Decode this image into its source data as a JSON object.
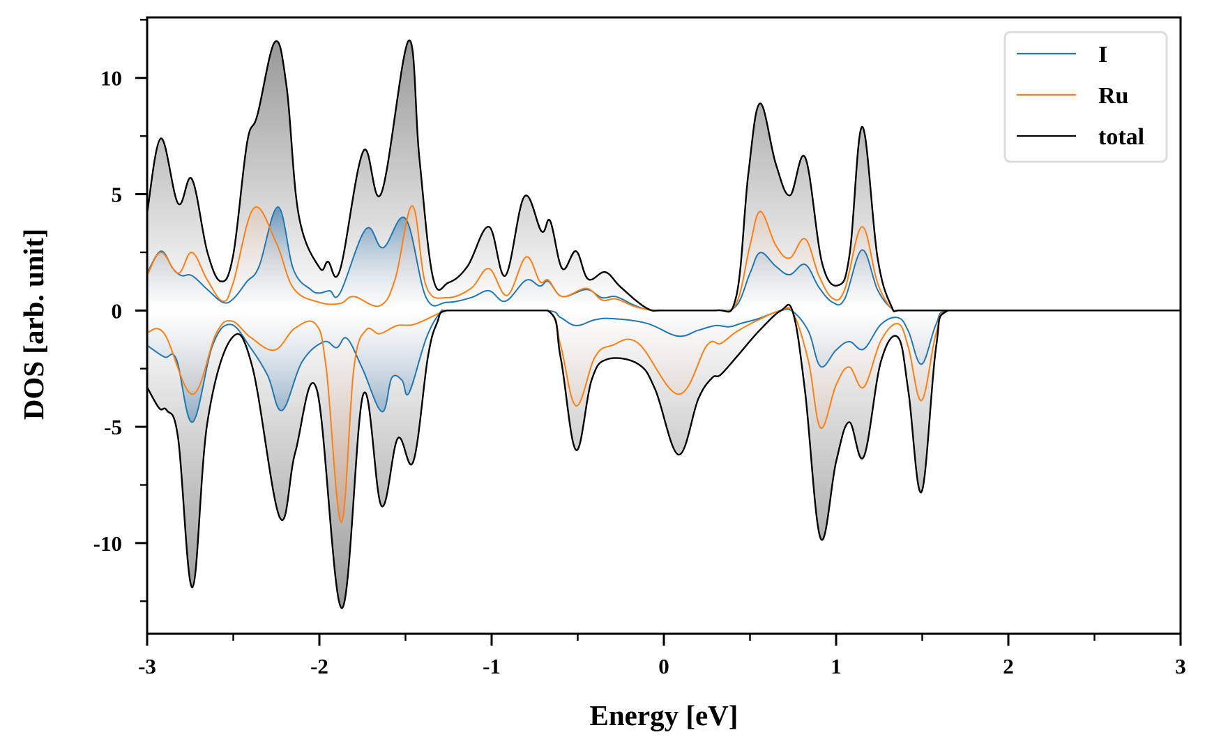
{
  "chart_data": {
    "type": "area",
    "title": "",
    "xlabel": "Energy [eV]",
    "ylabel": "DOS [arb. unit]",
    "xlim": [
      -3,
      3
    ],
    "ylim": [
      -13.9,
      12.6
    ],
    "x_ticks": [
      -3,
      -2,
      -1,
      0,
      1,
      2,
      3
    ],
    "x_tick_labels": [
      "-3",
      "-2",
      "-1",
      "0",
      "1",
      "2",
      "3"
    ],
    "x_minor_ticks": [
      -2.5,
      -1.5,
      -0.5,
      0.5,
      1.5,
      2.5
    ],
    "y_ticks": [
      -10,
      -5,
      0,
      5,
      10
    ],
    "y_tick_labels": [
      "-10",
      "-5",
      "0",
      "5",
      "10"
    ],
    "y_minor_ticks": [
      -12.5,
      -7.5,
      -2.5,
      2.5,
      7.5,
      12.5
    ],
    "grid": false,
    "legend": {
      "position": "top-right",
      "entries": [
        "I",
        "Ru",
        "total"
      ]
    },
    "series": [
      {
        "name": "I",
        "color": "#1f77b4",
        "spin_up": [
          [
            -3.0,
            1.6
          ],
          [
            -2.92,
            2.55
          ],
          [
            -2.85,
            1.8
          ],
          [
            -2.8,
            1.5
          ],
          [
            -2.74,
            1.5
          ],
          [
            -2.65,
            0.9
          ],
          [
            -2.56,
            0.35
          ],
          [
            -2.5,
            0.5
          ],
          [
            -2.42,
            1.25
          ],
          [
            -2.35,
            1.9
          ],
          [
            -2.24,
            4.45
          ],
          [
            -2.15,
            1.75
          ],
          [
            -2.05,
            0.9
          ],
          [
            -2.0,
            0.75
          ],
          [
            -1.94,
            0.85
          ],
          [
            -1.88,
            0.75
          ],
          [
            -1.73,
            3.5
          ],
          [
            -1.63,
            2.7
          ],
          [
            -1.5,
            3.95
          ],
          [
            -1.38,
            0.55
          ],
          [
            -1.26,
            0.35
          ],
          [
            -1.12,
            0.55
          ],
          [
            -1.016,
            0.85
          ],
          [
            -0.92,
            0.4
          ],
          [
            -0.8,
            1.3
          ],
          [
            -0.72,
            1.05
          ],
          [
            -0.67,
            1.25
          ],
          [
            -0.59,
            0.6
          ],
          [
            -0.45,
            0.9
          ],
          [
            -0.36,
            0.55
          ],
          [
            -0.28,
            0.6
          ],
          [
            -0.18,
            0.25
          ],
          [
            -0.1,
            0.05
          ],
          [
            0.0,
            0.0
          ],
          [
            0.3,
            0.0
          ],
          [
            0.42,
            0.2
          ],
          [
            0.5,
            1.6
          ],
          [
            0.56,
            2.49
          ],
          [
            0.65,
            1.9
          ],
          [
            0.73,
            1.54
          ],
          [
            0.82,
            1.98
          ],
          [
            0.9,
            1.0
          ],
          [
            0.98,
            0.35
          ],
          [
            1.05,
            0.5
          ],
          [
            1.15,
            2.6
          ],
          [
            1.24,
            0.9
          ],
          [
            1.32,
            0.1
          ],
          [
            1.38,
            0.0
          ],
          [
            3.0,
            0.0
          ]
        ],
        "spin_down": [
          [
            -3.0,
            -1.5
          ],
          [
            -2.9,
            -2.0
          ],
          [
            -2.83,
            -2.1
          ],
          [
            -2.737,
            -4.8
          ],
          [
            -2.62,
            -1.5
          ],
          [
            -2.515,
            -0.6
          ],
          [
            -2.4,
            -1.6
          ],
          [
            -2.3,
            -2.8
          ],
          [
            -2.217,
            -4.3
          ],
          [
            -2.1,
            -2.2
          ],
          [
            -1.974,
            -1.35
          ],
          [
            -1.9,
            -1.6
          ],
          [
            -1.84,
            -1.2
          ],
          [
            -1.75,
            -2.5
          ],
          [
            -1.637,
            -4.35
          ],
          [
            -1.58,
            -2.9
          ],
          [
            -1.52,
            -3.0
          ],
          [
            -1.48,
            -3.55
          ],
          [
            -1.38,
            -1.2
          ],
          [
            -1.3,
            -0.1
          ],
          [
            -1.26,
            0.0
          ],
          [
            -0.68,
            0.0
          ],
          [
            -0.6,
            -0.3
          ],
          [
            -0.51,
            -0.65
          ],
          [
            -0.4,
            -0.4
          ],
          [
            -0.3,
            -0.35
          ],
          [
            -0.1,
            -0.55
          ],
          [
            0.08,
            -1.1
          ],
          [
            0.2,
            -0.85
          ],
          [
            0.3,
            -0.65
          ],
          [
            0.38,
            -0.7
          ],
          [
            0.45,
            -0.55
          ],
          [
            0.55,
            -0.35
          ],
          [
            0.68,
            0.0
          ],
          [
            0.75,
            -0.05
          ],
          [
            0.84,
            -0.9
          ],
          [
            0.91,
            -2.41
          ],
          [
            1.0,
            -1.7
          ],
          [
            1.076,
            -1.34
          ],
          [
            1.16,
            -1.66
          ],
          [
            1.26,
            -0.6
          ],
          [
            1.36,
            -0.31
          ],
          [
            1.42,
            -0.9
          ],
          [
            1.496,
            -2.31
          ],
          [
            1.58,
            -0.6
          ],
          [
            1.65,
            0.0
          ],
          [
            3.0,
            0.0
          ]
        ]
      },
      {
        "name": "Ru",
        "color": "#ff7f0e",
        "spin_up": [
          [
            -3.0,
            1.5
          ],
          [
            -2.92,
            2.5
          ],
          [
            -2.82,
            1.6
          ],
          [
            -2.74,
            2.5
          ],
          [
            -2.65,
            1.3
          ],
          [
            -2.56,
            0.4
          ],
          [
            -2.5,
            1.2
          ],
          [
            -2.38,
            4.4
          ],
          [
            -2.25,
            2.9
          ],
          [
            -2.15,
            0.95
          ],
          [
            -2.0,
            0.35
          ],
          [
            -1.88,
            0.3
          ],
          [
            -1.8,
            0.6
          ],
          [
            -1.65,
            0.2
          ],
          [
            -1.56,
            1.35
          ],
          [
            -1.46,
            4.5
          ],
          [
            -1.38,
            1.05
          ],
          [
            -1.26,
            0.55
          ],
          [
            -1.12,
            0.95
          ],
          [
            -1.016,
            1.8
          ],
          [
            -0.91,
            0.65
          ],
          [
            -0.8,
            2.3
          ],
          [
            -0.72,
            1.25
          ],
          [
            -0.67,
            1.3
          ],
          [
            -0.59,
            0.6
          ],
          [
            -0.45,
            0.95
          ],
          [
            -0.36,
            0.45
          ],
          [
            -0.28,
            0.5
          ],
          [
            -0.18,
            0.2
          ],
          [
            -0.1,
            0.05
          ],
          [
            0.0,
            0.0
          ],
          [
            0.3,
            0.0
          ],
          [
            0.42,
            0.3
          ],
          [
            0.5,
            2.8
          ],
          [
            0.56,
            4.26
          ],
          [
            0.65,
            2.8
          ],
          [
            0.73,
            2.25
          ],
          [
            0.82,
            3.08
          ],
          [
            0.9,
            1.5
          ],
          [
            0.98,
            0.52
          ],
          [
            1.05,
            0.9
          ],
          [
            1.15,
            3.6
          ],
          [
            1.24,
            1.2
          ],
          [
            1.32,
            0.1
          ],
          [
            1.38,
            0.0
          ],
          [
            3.0,
            0.0
          ]
        ],
        "spin_down": [
          [
            -3.0,
            -0.95
          ],
          [
            -2.9,
            -1.0
          ],
          [
            -2.737,
            -3.6
          ],
          [
            -2.6,
            -1.0
          ],
          [
            -2.51,
            -0.45
          ],
          [
            -2.4,
            -1.15
          ],
          [
            -2.26,
            -1.7
          ],
          [
            -2.14,
            -0.75
          ],
          [
            -2.02,
            -0.6
          ],
          [
            -1.96,
            -2.5
          ],
          [
            -1.873,
            -9.1
          ],
          [
            -1.8,
            -2.5
          ],
          [
            -1.73,
            -0.85
          ],
          [
            -1.65,
            -1.0
          ],
          [
            -1.55,
            -0.65
          ],
          [
            -1.45,
            -0.6
          ],
          [
            -1.3,
            -0.1
          ],
          [
            -1.26,
            0.0
          ],
          [
            -0.68,
            0.0
          ],
          [
            -0.6,
            -1.5
          ],
          [
            -0.51,
            -4.1
          ],
          [
            -0.4,
            -2.0
          ],
          [
            -0.3,
            -1.5
          ],
          [
            -0.15,
            -1.4
          ],
          [
            0.085,
            -3.6
          ],
          [
            0.25,
            -1.5
          ],
          [
            0.33,
            -1.42
          ],
          [
            0.42,
            -0.92
          ],
          [
            0.55,
            -0.4
          ],
          [
            0.68,
            0.0
          ],
          [
            0.75,
            -0.1
          ],
          [
            0.84,
            -2.2
          ],
          [
            0.91,
            -5.05
          ],
          [
            1.0,
            -3.2
          ],
          [
            1.076,
            -2.43
          ],
          [
            1.16,
            -3.3
          ],
          [
            1.26,
            -1.3
          ],
          [
            1.36,
            -0.57
          ],
          [
            1.42,
            -1.6
          ],
          [
            1.496,
            -3.87
          ],
          [
            1.58,
            -1.0
          ],
          [
            1.65,
            0.0
          ],
          [
            3.0,
            0.0
          ]
        ]
      },
      {
        "name": "total",
        "color": "#000000",
        "spin_up": [
          [
            -3.0,
            4.2
          ],
          [
            -2.92,
            7.4
          ],
          [
            -2.82,
            4.6
          ],
          [
            -2.74,
            5.65
          ],
          [
            -2.65,
            2.5
          ],
          [
            -2.57,
            1.25
          ],
          [
            -2.5,
            2.4
          ],
          [
            -2.42,
            7.2
          ],
          [
            -2.36,
            8.4
          ],
          [
            -2.258,
            11.55
          ],
          [
            -2.19,
            9.6
          ],
          [
            -2.12,
            4.1
          ],
          [
            -2.0,
            1.85
          ],
          [
            -1.95,
            2.1
          ],
          [
            -1.88,
            1.75
          ],
          [
            -1.745,
            6.85
          ],
          [
            -1.64,
            5.05
          ],
          [
            -1.482,
            11.6
          ],
          [
            -1.42,
            6.6
          ],
          [
            -1.34,
            1.4
          ],
          [
            -1.25,
            1.2
          ],
          [
            -1.14,
            1.9
          ],
          [
            -1.016,
            3.6
          ],
          [
            -0.92,
            1.5
          ],
          [
            -0.81,
            4.9
          ],
          [
            -0.71,
            3.4
          ],
          [
            -0.66,
            3.85
          ],
          [
            -0.59,
            1.8
          ],
          [
            -0.51,
            2.55
          ],
          [
            -0.44,
            1.35
          ],
          [
            -0.34,
            1.65
          ],
          [
            -0.25,
            1.0
          ],
          [
            -0.1,
            0.1
          ],
          [
            0.0,
            0.0
          ],
          [
            0.3,
            0.0
          ],
          [
            0.42,
            0.6
          ],
          [
            0.49,
            5.85
          ],
          [
            0.558,
            8.9
          ],
          [
            0.65,
            6.3
          ],
          [
            0.732,
            4.95
          ],
          [
            0.821,
            6.57
          ],
          [
            0.92,
            2.0
          ],
          [
            1.018,
            1.1
          ],
          [
            1.08,
            2.5
          ],
          [
            1.152,
            7.9
          ],
          [
            1.24,
            2.3
          ],
          [
            1.32,
            0.2
          ],
          [
            1.38,
            0.0
          ],
          [
            3.0,
            0.0
          ]
        ],
        "spin_down": [
          [
            -3.0,
            -3.3
          ],
          [
            -2.93,
            -4.2
          ],
          [
            -2.885,
            -4.3
          ],
          [
            -2.82,
            -5.5
          ],
          [
            -2.737,
            -11.9
          ],
          [
            -2.65,
            -4.8
          ],
          [
            -2.51,
            -1.2
          ],
          [
            -2.39,
            -2.4
          ],
          [
            -2.23,
            -8.9
          ],
          [
            -2.14,
            -6.1
          ],
          [
            -2.015,
            -3.4
          ],
          [
            -1.87,
            -12.8
          ],
          [
            -1.745,
            -3.6
          ],
          [
            -1.64,
            -8.4
          ],
          [
            -1.545,
            -5.5
          ],
          [
            -1.455,
            -6.5
          ],
          [
            -1.37,
            -2.0
          ],
          [
            -1.315,
            -0.5
          ],
          [
            -1.26,
            0.0
          ],
          [
            -0.674,
            0.0
          ],
          [
            -0.6,
            -2.0
          ],
          [
            -0.51,
            -6.0
          ],
          [
            -0.42,
            -3.0
          ],
          [
            -0.33,
            -2.1
          ],
          [
            -0.15,
            -2.3
          ],
          [
            -0.05,
            -3.4
          ],
          [
            0.085,
            -6.2
          ],
          [
            0.2,
            -3.8
          ],
          [
            0.28,
            -2.9
          ],
          [
            0.33,
            -2.76
          ],
          [
            0.43,
            -1.93
          ],
          [
            0.55,
            -0.9
          ],
          [
            0.68,
            0.0
          ],
          [
            0.75,
            -0.1
          ],
          [
            0.82,
            -3.5
          ],
          [
            0.91,
            -9.8
          ],
          [
            1.0,
            -6.5
          ],
          [
            1.076,
            -4.8
          ],
          [
            1.16,
            -6.3
          ],
          [
            1.26,
            -2.2
          ],
          [
            1.36,
            -1.16
          ],
          [
            1.42,
            -3.5
          ],
          [
            1.496,
            -7.8
          ],
          [
            1.58,
            -1.6
          ],
          [
            1.65,
            0.0
          ],
          [
            3.0,
            0.0
          ]
        ]
      }
    ]
  }
}
